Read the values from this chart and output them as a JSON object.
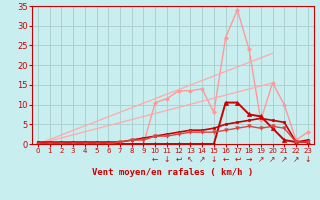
{
  "background_color": "#c8eef0",
  "grid_color": "#aacccc",
  "xlabel": "Vent moyen/en rafales ( km/h )",
  "xlim": [
    -0.5,
    23.5
  ],
  "ylim": [
    0,
    35
  ],
  "xticks": [
    0,
    1,
    2,
    3,
    4,
    5,
    6,
    7,
    8,
    9,
    10,
    11,
    12,
    13,
    14,
    15,
    16,
    17,
    18,
    19,
    20,
    21,
    22,
    23
  ],
  "yticks": [
    0,
    5,
    10,
    15,
    20,
    25,
    30,
    35
  ],
  "lines": [
    {
      "x": [
        0,
        1,
        2,
        3,
        4,
        5,
        6,
        7,
        8,
        9,
        10,
        11,
        12,
        13,
        14,
        15,
        16,
        17,
        18,
        19,
        20,
        21,
        22,
        23
      ],
      "y": [
        0,
        0,
        0,
        0,
        0,
        0,
        0,
        0,
        0,
        0,
        10.5,
        11.5,
        13.5,
        13.5,
        14,
        8,
        27,
        34,
        24,
        6,
        15.5,
        10,
        1,
        3
      ],
      "color": "#ff9999",
      "linewidth": 1.0,
      "marker": "D",
      "markersize": 2.0
    },
    {
      "x": [
        0,
        20
      ],
      "y": [
        0,
        15.5
      ],
      "color": "#ffaaaa",
      "linewidth": 0.9,
      "marker": null,
      "markersize": 0
    },
    {
      "x": [
        0,
        20
      ],
      "y": [
        0,
        23
      ],
      "color": "#ffaaaa",
      "linewidth": 0.9,
      "marker": null,
      "markersize": 0
    },
    {
      "x": [
        0,
        1,
        2,
        3,
        4,
        5,
        6,
        7,
        8,
        9,
        10,
        11,
        12,
        13,
        14,
        15,
        16,
        17,
        18,
        19,
        20,
        21,
        22,
        23
      ],
      "y": [
        0,
        0,
        0,
        0,
        0,
        0,
        0,
        0,
        0,
        0,
        0,
        0,
        0,
        0,
        0,
        0,
        10.5,
        10.5,
        7.5,
        7,
        4,
        1,
        0.5,
        0.5
      ],
      "color": "#cc0000",
      "linewidth": 1.4,
      "marker": "^",
      "markersize": 3.0
    },
    {
      "x": [
        0,
        1,
        2,
        3,
        4,
        5,
        6,
        7,
        8,
        9,
        10,
        11,
        12,
        13,
        14,
        15,
        16,
        17,
        18,
        19,
        20,
        21,
        22,
        23
      ],
      "y": [
        0.5,
        0.5,
        0.5,
        0.5,
        0.5,
        0.5,
        0.5,
        0.5,
        1,
        1.5,
        2,
        2.5,
        3,
        3.5,
        3.5,
        4,
        5,
        5.5,
        6,
        6.5,
        6,
        5.5,
        0.5,
        1
      ],
      "color": "#cc0000",
      "linewidth": 1.2,
      "marker": "s",
      "markersize": 2.0
    },
    {
      "x": [
        0,
        1,
        2,
        3,
        4,
        5,
        6,
        7,
        8,
        9,
        10,
        11,
        12,
        13,
        14,
        15,
        16,
        17,
        18,
        19,
        20,
        21,
        22,
        23
      ],
      "y": [
        0,
        0,
        0,
        0,
        0,
        0,
        0,
        0.5,
        1,
        1,
        2,
        2,
        2.5,
        3,
        3,
        3,
        3.5,
        4,
        4.5,
        4,
        4.5,
        4,
        0.5,
        0.5
      ],
      "color": "#dd4444",
      "linewidth": 1.0,
      "marker": "v",
      "markersize": 2.5
    }
  ],
  "wind_symbols": {
    "x": [
      10,
      11,
      12,
      13,
      14,
      15,
      16,
      17,
      18,
      19,
      20,
      21,
      22,
      23
    ],
    "symbols": [
      "←",
      "↓",
      "↩",
      "↖",
      "↗",
      "↓",
      "←",
      "↩",
      "→",
      "↗",
      "↗",
      "↗",
      "↗",
      "↓"
    ],
    "color": "#cc0000",
    "fontsize": 5.5
  }
}
